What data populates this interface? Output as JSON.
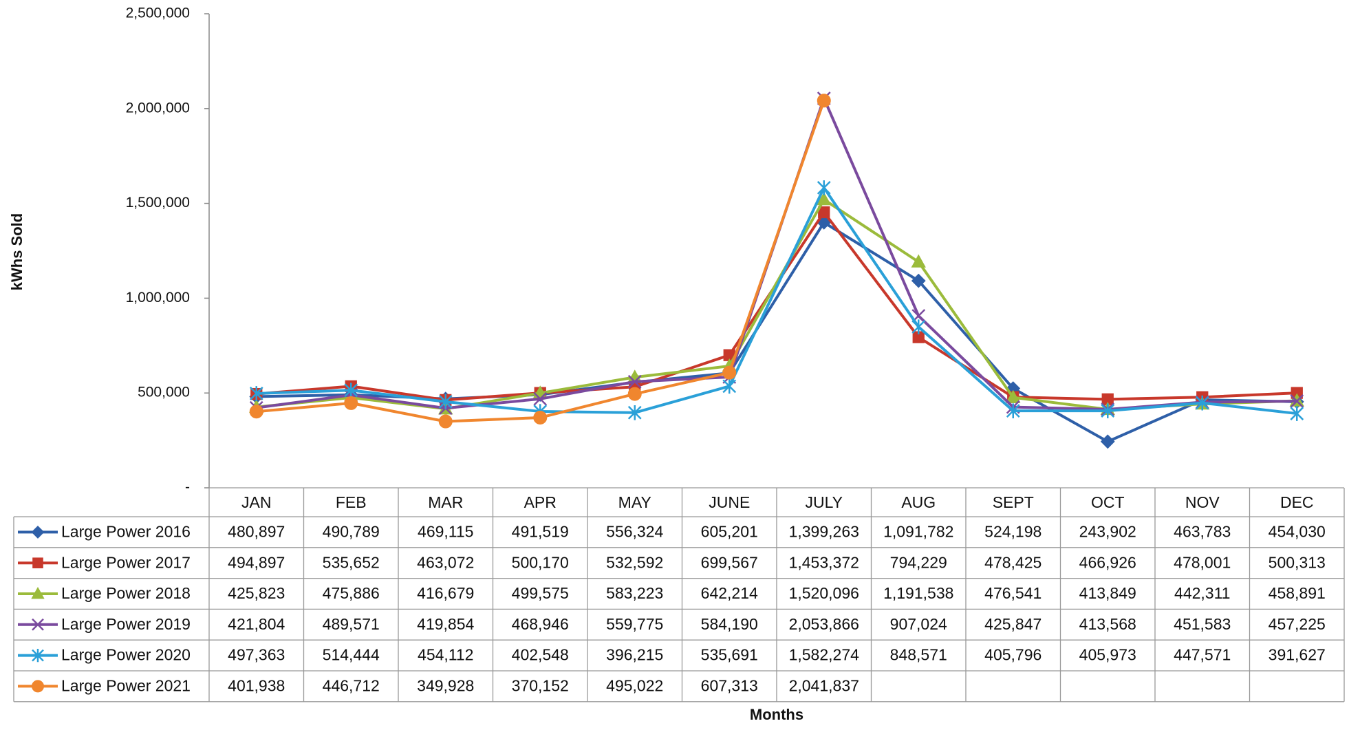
{
  "chart_data": {
    "type": "line",
    "y_label": "kWhs Sold",
    "x_label": "Months",
    "categories": [
      "JAN",
      "FEB",
      "MAR",
      "APR",
      "MAY",
      "JUNE",
      "JULY",
      "AUG",
      "SEPT",
      "OCT",
      "NOV",
      "DEC"
    ],
    "ylim": [
      0,
      2500000
    ],
    "yticks": [
      {
        "value": 0,
        "label": "-"
      },
      {
        "value": 500000,
        "label": "500,000"
      },
      {
        "value": 1000000,
        "label": "1,000,000"
      },
      {
        "value": 1500000,
        "label": "1,500,000"
      },
      {
        "value": 2000000,
        "label": "2,000,000"
      },
      {
        "value": 2500000,
        "label": "2,500,000"
      }
    ],
    "grid": false,
    "series": [
      {
        "name": "Large Power 2016",
        "color": "#2e5fa8",
        "marker": "diamond",
        "values": [
          480897,
          490789,
          469115,
          491519,
          556324,
          605201,
          1399263,
          1091782,
          524198,
          243902,
          463783,
          454030
        ],
        "value_labels": [
          "480,897",
          "490,789",
          "469,115",
          "491,519",
          "556,324",
          "605,201",
          "1,399,263",
          "1,091,782",
          "524,198",
          "243,902",
          "463,783",
          "454,030"
        ]
      },
      {
        "name": "Large Power 2017",
        "color": "#c8382b",
        "marker": "square",
        "values": [
          494897,
          535652,
          463072,
          500170,
          532592,
          699567,
          1453372,
          794229,
          478425,
          466926,
          478001,
          500313
        ],
        "value_labels": [
          "494,897",
          "535,652",
          "463,072",
          "500,170",
          "532,592",
          "699,567",
          "1,453,372",
          "794,229",
          "478,425",
          "466,926",
          "478,001",
          "500,313"
        ]
      },
      {
        "name": "Large Power 2018",
        "color": "#9bbb3b",
        "marker": "triangle",
        "values": [
          425823,
          475886,
          416679,
          499575,
          583223,
          642214,
          1520096,
          1191538,
          476541,
          413849,
          442311,
          458891
        ],
        "value_labels": [
          "425,823",
          "475,886",
          "416,679",
          "499,575",
          "583,223",
          "642,214",
          "1,520,096",
          "1,191,538",
          "476,541",
          "413,849",
          "442,311",
          "458,891"
        ]
      },
      {
        "name": "Large Power 2019",
        "color": "#7a4a9e",
        "marker": "x",
        "values": [
          421804,
          489571,
          419854,
          468946,
          559775,
          584190,
          2053866,
          907024,
          425847,
          413568,
          451583,
          457225
        ],
        "value_labels": [
          "421,804",
          "489,571",
          "419,854",
          "468,946",
          "559,775",
          "584,190",
          "2,053,866",
          "907,024",
          "425,847",
          "413,568",
          "451,583",
          "457,225"
        ]
      },
      {
        "name": "Large Power 2020",
        "color": "#2aa0d8",
        "marker": "star",
        "values": [
          497363,
          514444,
          454112,
          402548,
          396215,
          535691,
          1582274,
          848571,
          405796,
          405973,
          447571,
          391627
        ],
        "value_labels": [
          "497,363",
          "514,444",
          "454,112",
          "402,548",
          "396,215",
          "535,691",
          "1,582,274",
          "848,571",
          "405,796",
          "405,973",
          "447,571",
          "391,627"
        ]
      },
      {
        "name": "Large Power 2021",
        "color": "#f0862e",
        "marker": "circle",
        "values": [
          401938,
          446712,
          349928,
          370152,
          495022,
          607313,
          2041837,
          null,
          null,
          null,
          null,
          null
        ],
        "value_labels": [
          "401,938",
          "446,712",
          "349,928",
          "370,152",
          "495,022",
          "607,313",
          "2,041,837",
          null,
          null,
          null,
          null,
          null
        ]
      }
    ]
  }
}
